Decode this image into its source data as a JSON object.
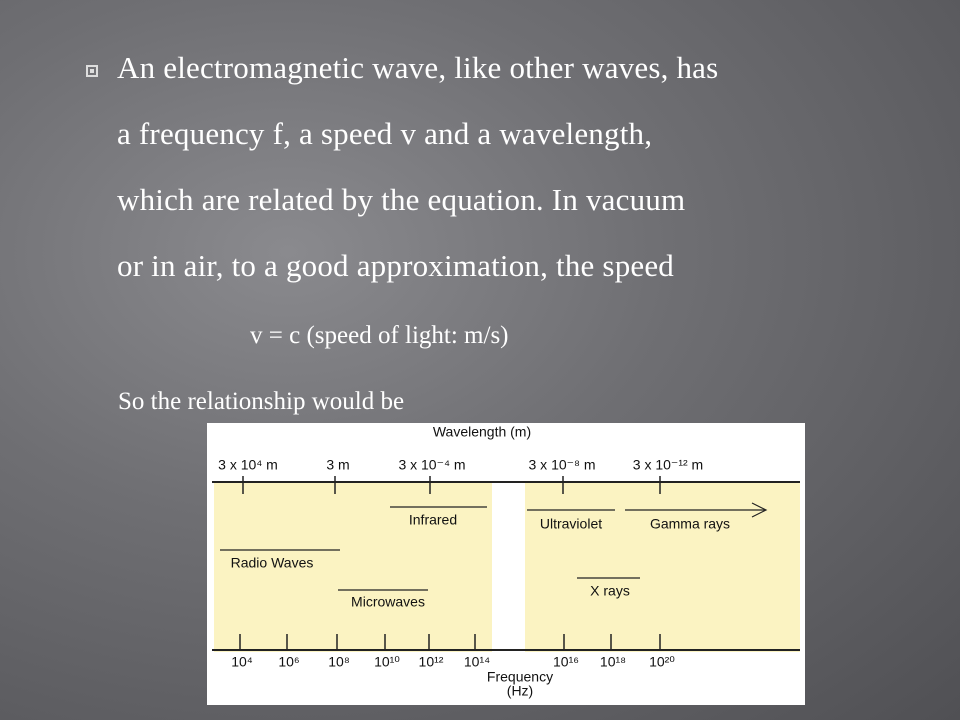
{
  "bullet": {
    "lines": [
      "An electromagnetic wave, like other waves, has",
      "a frequency f, a speed v and a wavelength,",
      "which are related by the equation. In vacuum",
      "or in air, to a good approximation, the speed"
    ]
  },
  "equation": "v = c (speed of light: m/s)",
  "relationship": "So the relationship would be",
  "diagram": {
    "wavelength_title": "Wavelength (m)",
    "wavelength_labels": [
      "3 x 10⁴ m",
      "3 m",
      "3 x 10⁻⁴ m",
      "3 x 10⁻⁸ m",
      "3 x 10⁻¹² m"
    ],
    "bands": [
      "Infrared",
      "Ultraviolet",
      "Gamma rays",
      "Radio Waves",
      "Microwaves",
      "X rays"
    ],
    "frequency_labels": [
      "10⁴",
      "10⁶",
      "10⁸",
      "10¹⁰",
      "10¹²",
      "10¹⁴",
      "10¹⁶",
      "10¹⁸",
      "10²⁰"
    ],
    "frequency_title": [
      "Frequency",
      "(Hz)"
    ]
  }
}
